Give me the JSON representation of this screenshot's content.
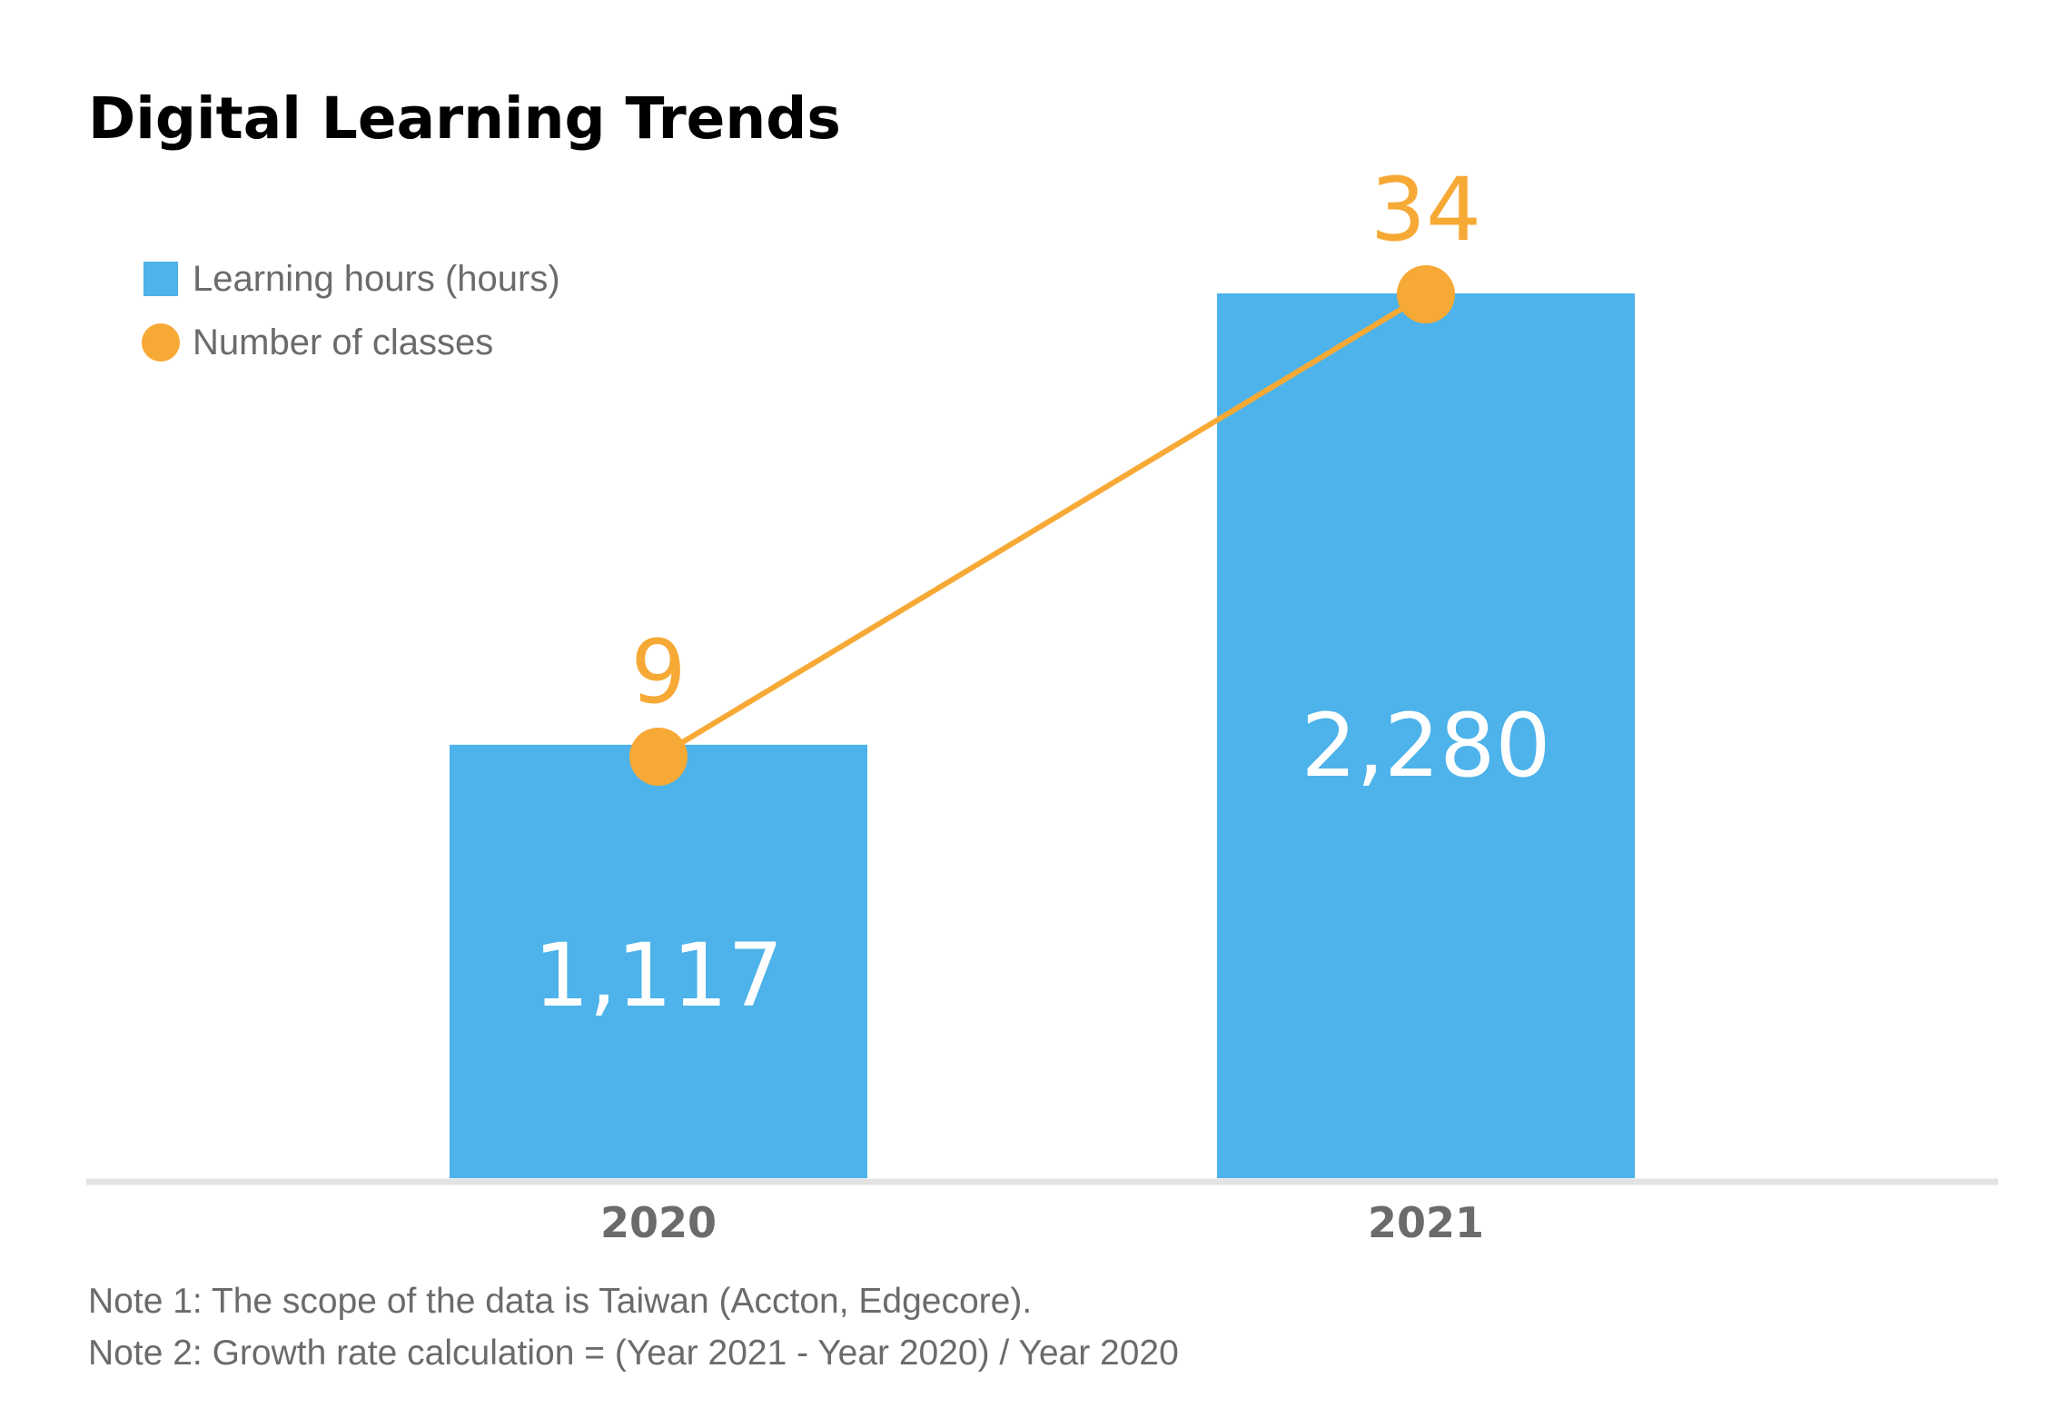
{
  "colors": {
    "bar": "#4db3ea",
    "line": "#f7a935",
    "axis": "#e3e3e3",
    "text_muted": "#6b6b6b",
    "title": "#000000"
  },
  "chart_data": {
    "type": "bar",
    "title": "Digital Learning Trends",
    "categories": [
      "2020",
      "2021"
    ],
    "series": [
      {
        "name": "Learning hours (hours)",
        "kind": "bar",
        "values": [
          1117,
          2280
        ],
        "labels": [
          "1,117",
          "2,280"
        ]
      },
      {
        "name": "Number of classes",
        "kind": "line",
        "values": [
          9,
          34
        ],
        "labels": [
          "9",
          "34"
        ]
      }
    ],
    "legend_position": "top-left",
    "grid": false,
    "notes": [
      "Note 1: The scope of the data is Taiwan (Accton, Edgecore).",
      "Note 2: Growth rate calculation = (Year 2021 - Year 2020) / Year 2020"
    ]
  }
}
